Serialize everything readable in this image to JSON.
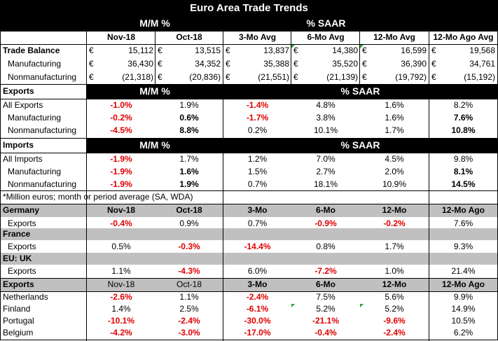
{
  "title": "Euro Area Trade Trends",
  "header": {
    "mm": "M/M %",
    "saar": "% SAAR",
    "cols": [
      "Nov-18",
      "Oct-18",
      "3-Mo Avg",
      "6-Mo Avg",
      "12-Mo Avg",
      "12-Mo Ago Avg"
    ]
  },
  "trade": {
    "currency": "€",
    "rows": [
      {
        "label": "Trade Balance",
        "vals": [
          "15,112",
          "13,515",
          "13,837",
          "14,380",
          "16,599",
          "19,568"
        ]
      },
      {
        "label": "Manufacturing",
        "vals": [
          "36,430",
          "34,352",
          "35,388",
          "35,520",
          "36,390",
          "34,761"
        ]
      },
      {
        "label": "Nonmanufacturing",
        "vals": [
          "(21,318)",
          "(20,836)",
          "(21,551)",
          "(21,139)",
          "(19,792)",
          "(15,192)"
        ]
      }
    ]
  },
  "exports": {
    "label": "Exports",
    "mm": "M/M %",
    "saar": "% SAAR",
    "rows": [
      {
        "label": "All Exports",
        "vals": [
          "-1.0%",
          "1.9%",
          "-1.4%",
          "4.8%",
          "1.6%",
          "8.2%"
        ]
      },
      {
        "label": "Manufacturing",
        "vals": [
          "-0.2%",
          "0.6%",
          "-1.7%",
          "3.8%",
          "1.6%",
          "7.6%"
        ]
      },
      {
        "label": "Nonmanufacturing",
        "vals": [
          "-4.5%",
          "8.8%",
          "0.2%",
          "10.1%",
          "1.7%",
          "10.8%"
        ]
      }
    ]
  },
  "imports": {
    "label": "Imports",
    "mm": "M/M %",
    "saar": "% SAAR",
    "rows": [
      {
        "label": "All Imports",
        "vals": [
          "-1.9%",
          "1.7%",
          "1.2%",
          "7.0%",
          "4.5%",
          "9.8%"
        ]
      },
      {
        "label": "Manufacturing",
        "vals": [
          "-1.9%",
          "1.6%",
          "1.5%",
          "2.7%",
          "2.0%",
          "8.1%"
        ]
      },
      {
        "label": "Nonmanufacturing",
        "vals": [
          "-1.9%",
          "1.9%",
          "0.7%",
          "18.1%",
          "10.9%",
          "14.5%"
        ]
      }
    ]
  },
  "footnote": "*Million euros; month or period average (SA, WDA)",
  "country_header": {
    "label": "Germany",
    "cols": [
      "Nov-18",
      "Oct-18",
      "3-Mo",
      "6-Mo",
      "12-Mo",
      "12-Mo Ago"
    ]
  },
  "countries": [
    {
      "name": "Germany",
      "sub": "Exports",
      "vals": [
        "-0.4%",
        "0.9%",
        "0.7%",
        "-0.9%",
        "-0.2%",
        "7.6%"
      ]
    },
    {
      "name": "France",
      "sub": "Exports",
      "vals": [
        "0.5%",
        "-0.3%",
        "-14.4%",
        "0.8%",
        "1.7%",
        "9.3%"
      ]
    },
    {
      "name": "EU: UK",
      "sub": "Exports",
      "vals": [
        "1.1%",
        "-4.3%",
        "6.0%",
        "-7.2%",
        "1.0%",
        "21.4%"
      ]
    }
  ],
  "exports_header": {
    "label": "Exports",
    "cols": [
      "Nov-18",
      "Oct-18",
      "3-Mo",
      "6-Mo",
      "12-Mo",
      "12-Mo Ago"
    ]
  },
  "export_countries": [
    {
      "label": "Netherlands",
      "vals": [
        "-2.6%",
        "1.1%",
        "-2.4%",
        "7.5%",
        "5.6%",
        "9.9%"
      ]
    },
    {
      "label": "Finland",
      "vals": [
        "1.4%",
        "2.5%",
        "-6.1%",
        "5.2%",
        "5.2%",
        "14.9%"
      ]
    },
    {
      "label": "Portugal",
      "vals": [
        "-10.1%",
        "-2.4%",
        "-30.0%",
        "-21.1%",
        "-9.6%",
        "10.5%"
      ]
    },
    {
      "label": "Belgium",
      "vals": [
        "-4.2%",
        "-3.0%",
        "-17.0%",
        "-0.4%",
        "-2.4%",
        "6.2%"
      ]
    }
  ],
  "colors": {
    "negative": "#e00000",
    "header_bg": "#000000",
    "band_bg": "#c0c0c0"
  }
}
